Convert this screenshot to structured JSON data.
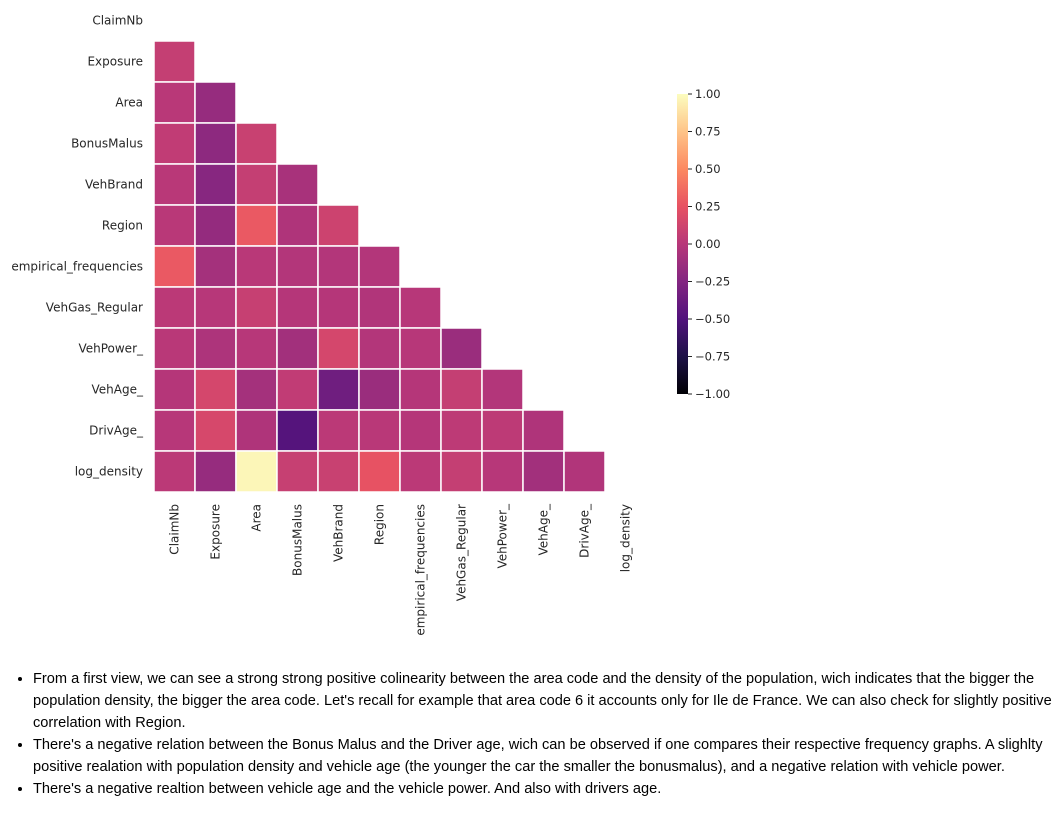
{
  "chart_data": {
    "type": "heatmap",
    "variables": [
      "ClaimNb",
      "Exposure",
      "Area",
      "BonusMalus",
      "VehBrand",
      "Region",
      "empirical_frequencies",
      "VehGas_Regular",
      "VehPower_",
      "VehAge_",
      "DrivAge_",
      "log_density"
    ],
    "mask": "upper triangle incl. diagonal",
    "matrix": [
      [],
      [
        0.07
      ],
      [
        0.01,
        -0.16
      ],
      [
        0.05,
        -0.2,
        0.09
      ],
      [
        0.01,
        -0.23,
        0.07,
        -0.07
      ],
      [
        0.01,
        -0.17,
        0.28,
        -0.04,
        0.11
      ],
      [
        0.28,
        -0.09,
        0.01,
        -0.02,
        -0.02,
        -0.02
      ],
      [
        0.02,
        0.0,
        0.08,
        -0.01,
        -0.01,
        -0.03,
        -0.0
      ],
      [
        0.01,
        -0.05,
        0.0,
        -0.1,
        0.15,
        -0.02,
        -0.0,
        -0.14
      ],
      [
        -0.01,
        0.15,
        -0.09,
        0.05,
        -0.35,
        -0.14,
        -0.01,
        0.07,
        -0.02
      ],
      [
        0.0,
        0.16,
        -0.04,
        -0.48,
        0.02,
        0.01,
        -0.01,
        0.03,
        0.03,
        -0.04
      ],
      [
        0.02,
        -0.16,
        0.97,
        0.08,
        0.09,
        0.25,
        0.02,
        0.07,
        0.0,
        -0.1,
        -0.03
      ]
    ],
    "colormap": "magma",
    "colorbar": {
      "ticks": [
        1.0,
        0.75,
        0.5,
        0.25,
        0.0,
        -0.25,
        -0.5,
        -0.75,
        -1.0
      ],
      "tick_labels": [
        "1.00",
        "0.75",
        "0.50",
        "0.25",
        "0.00",
        "−0.25",
        "−0.50",
        "−0.75",
        "−1.00"
      ],
      "vmin": -1.0,
      "vmax": 1.0
    },
    "title": "",
    "xlabel": "",
    "ylabel": ""
  },
  "notes": [
    "From a first view, we can see a strong strong positive colinearity between the area code and the density of the population, wich indicates that the bigger the population density, the bigger the area code. Let's recall for example that area code 6 it accounts only for Ile de France. We can also check for slightly positive correlation with Region.",
    "There's a negative relation between the Bonus Malus and the Driver age, wich can be observed if one compares their respective frequency graphs. A slighlty positive realation with population density and vehicle age (the younger the car the smaller the bonusmalus), and a negative relation with vehicle power.",
    "There's a negative realtion between vehicle age and the vehicle power. And also with drivers age."
  ]
}
